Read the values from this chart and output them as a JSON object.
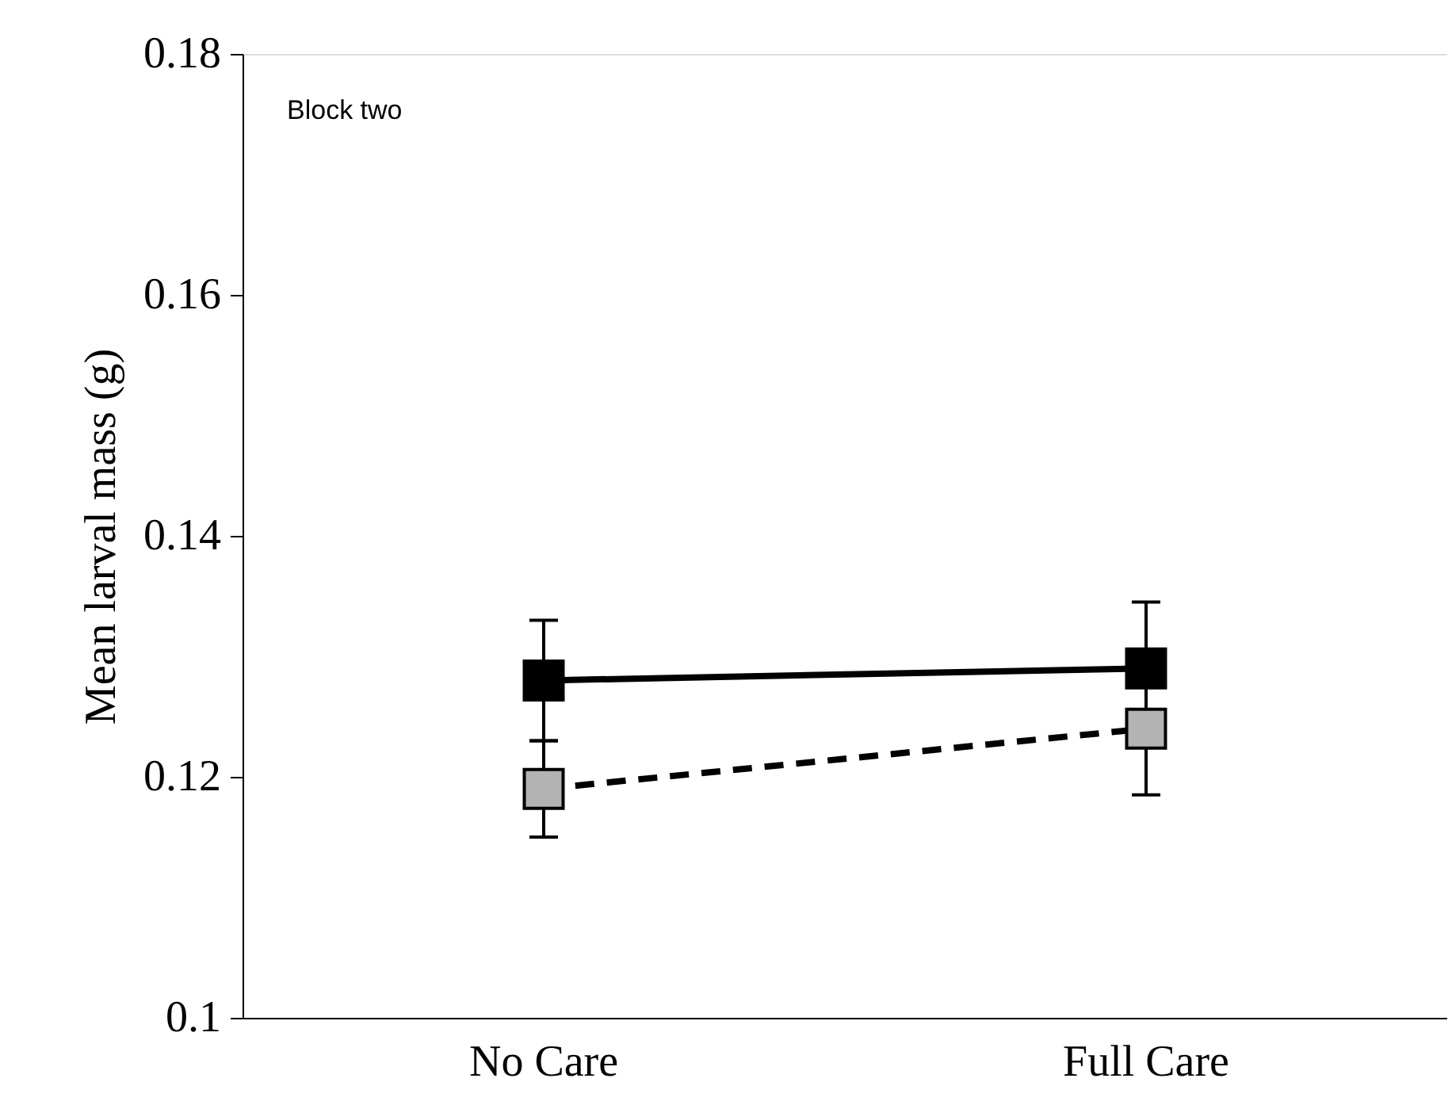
{
  "chart_data": {
    "type": "line",
    "ylabel": "Mean larval mass (g)",
    "categories": [
      "No Care",
      "Full Care"
    ],
    "series": [
      {
        "color": "#000000",
        "values": [
          0.128,
          0.129
        ],
        "errors": [
          0.005,
          0.0055
        ],
        "line_style": "solid"
      },
      {
        "color": "#b3b3b3",
        "values": [
          0.119,
          0.124
        ],
        "errors": [
          0.004,
          0.0055
        ],
        "line_style": "dashed"
      }
    ],
    "ylim": [
      0.1,
      0.18
    ],
    "yticks": [
      0.1,
      0.12,
      0.14,
      0.16,
      0.18
    ],
    "marker": "square",
    "grid": false,
    "annotations": [
      "Block two"
    ]
  }
}
